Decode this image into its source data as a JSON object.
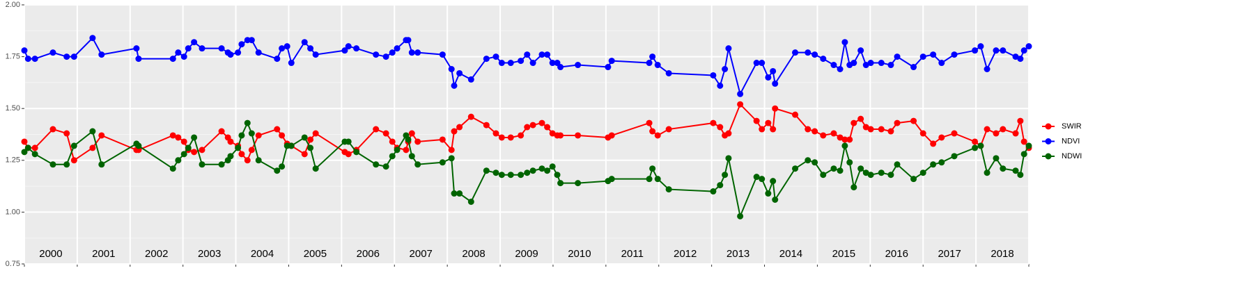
{
  "chart_data": {
    "type": "line",
    "x": [
      2000.0,
      2000.07,
      2000.2,
      2000.54,
      2000.8,
      2000.94,
      2001.29,
      2001.46,
      2002.12,
      2002.16,
      2002.81,
      2002.91,
      2003.02,
      2003.1,
      2003.21,
      2003.36,
      2003.73,
      2003.85,
      2003.9,
      2004.04,
      2004.11,
      2004.22,
      2004.3,
      2004.43,
      2004.78,
      2004.87,
      2004.97,
      2005.05,
      2005.3,
      2005.41,
      2005.51,
      2006.06,
      2006.13,
      2006.28,
      2006.65,
      2006.84,
      2006.96,
      2007.05,
      2007.22,
      2007.26,
      2007.33,
      2007.44,
      2007.91,
      2008.08,
      2008.13,
      2008.23,
      2008.45,
      2008.74,
      2008.92,
      2009.03,
      2009.2,
      2009.39,
      2009.51,
      2009.62,
      2009.79,
      2009.89,
      2009.99,
      2010.08,
      2010.14,
      2010.47,
      2011.04,
      2011.11,
      2011.82,
      2011.88,
      2011.98,
      2012.19,
      2013.03,
      2013.16,
      2013.25,
      2013.32,
      2013.54,
      2013.85,
      2013.95,
      2014.07,
      2014.16,
      2014.2,
      2014.58,
      2014.82,
      2014.95,
      2015.11,
      2015.31,
      2015.43,
      2015.52,
      2015.61,
      2015.69,
      2015.82,
      2015.92,
      2016.01,
      2016.21,
      2016.39,
      2016.51,
      2016.82,
      2017.0,
      2017.19,
      2017.35,
      2017.59,
      2017.98,
      2018.09,
      2018.21,
      2018.38,
      2018.51,
      2018.75,
      2018.84,
      2018.91,
      2019.0
    ],
    "series": [
      {
        "name": "SWIR",
        "color": "#ff0000",
        "values": [
          1.34,
          1.31,
          1.31,
          1.4,
          1.38,
          1.25,
          1.31,
          1.37,
          1.3,
          1.3,
          1.37,
          1.36,
          1.34,
          1.3,
          1.29,
          1.3,
          1.39,
          1.36,
          1.34,
          1.32,
          1.28,
          1.25,
          1.3,
          1.37,
          1.4,
          1.37,
          1.33,
          1.32,
          1.28,
          1.35,
          1.38,
          1.29,
          1.28,
          1.3,
          1.4,
          1.38,
          1.34,
          1.31,
          1.3,
          1.34,
          1.38,
          1.34,
          1.35,
          1.3,
          1.39,
          1.41,
          1.46,
          1.42,
          1.38,
          1.36,
          1.36,
          1.37,
          1.41,
          1.42,
          1.43,
          1.41,
          1.38,
          1.37,
          1.37,
          1.37,
          1.36,
          1.37,
          1.43,
          1.39,
          1.37,
          1.4,
          1.43,
          1.41,
          1.37,
          1.38,
          1.52,
          1.44,
          1.4,
          1.43,
          1.4,
          1.5,
          1.47,
          1.4,
          1.39,
          1.37,
          1.38,
          1.36,
          1.35,
          1.35,
          1.43,
          1.45,
          1.41,
          1.4,
          1.4,
          1.39,
          1.43,
          1.44,
          1.38,
          1.33,
          1.36,
          1.38,
          1.34,
          1.32,
          1.4,
          1.38,
          1.4,
          1.38,
          1.44,
          1.34,
          1.31
        ]
      },
      {
        "name": "NDVI",
        "color": "#0000ff",
        "values": [
          1.78,
          1.74,
          1.74,
          1.77,
          1.75,
          1.75,
          1.84,
          1.76,
          1.79,
          1.74,
          1.74,
          1.77,
          1.75,
          1.79,
          1.82,
          1.79,
          1.79,
          1.77,
          1.76,
          1.77,
          1.81,
          1.83,
          1.83,
          1.77,
          1.74,
          1.79,
          1.8,
          1.72,
          1.82,
          1.79,
          1.76,
          1.78,
          1.8,
          1.79,
          1.76,
          1.75,
          1.77,
          1.79,
          1.83,
          1.83,
          1.77,
          1.77,
          1.76,
          1.69,
          1.61,
          1.67,
          1.64,
          1.74,
          1.75,
          1.72,
          1.72,
          1.73,
          1.76,
          1.72,
          1.76,
          1.76,
          1.72,
          1.72,
          1.7,
          1.71,
          1.7,
          1.73,
          1.72,
          1.75,
          1.71,
          1.67,
          1.66,
          1.61,
          1.69,
          1.79,
          1.57,
          1.72,
          1.72,
          1.65,
          1.68,
          1.62,
          1.77,
          1.77,
          1.76,
          1.74,
          1.71,
          1.69,
          1.82,
          1.71,
          1.72,
          1.78,
          1.71,
          1.72,
          1.72,
          1.71,
          1.75,
          1.7,
          1.75,
          1.76,
          1.72,
          1.76,
          1.78,
          1.8,
          1.69,
          1.78,
          1.78,
          1.75,
          1.74,
          1.78,
          1.8
        ]
      },
      {
        "name": "NDWI",
        "color": "#006400",
        "values": [
          1.29,
          1.31,
          1.28,
          1.23,
          1.23,
          1.32,
          1.39,
          1.23,
          1.33,
          1.32,
          1.21,
          1.25,
          1.28,
          1.31,
          1.36,
          1.23,
          1.23,
          1.25,
          1.27,
          1.31,
          1.37,
          1.43,
          1.38,
          1.25,
          1.2,
          1.22,
          1.32,
          1.32,
          1.36,
          1.31,
          1.21,
          1.34,
          1.34,
          1.29,
          1.23,
          1.22,
          1.27,
          1.3,
          1.37,
          1.35,
          1.27,
          1.23,
          1.24,
          1.26,
          1.09,
          1.09,
          1.05,
          1.2,
          1.19,
          1.18,
          1.18,
          1.18,
          1.19,
          1.2,
          1.21,
          1.2,
          1.22,
          1.18,
          1.14,
          1.14,
          1.15,
          1.16,
          1.16,
          1.21,
          1.16,
          1.11,
          1.1,
          1.13,
          1.18,
          1.26,
          0.98,
          1.17,
          1.16,
          1.09,
          1.15,
          1.06,
          1.21,
          1.25,
          1.24,
          1.18,
          1.21,
          1.2,
          1.32,
          1.24,
          1.12,
          1.21,
          1.19,
          1.18,
          1.19,
          1.18,
          1.23,
          1.16,
          1.19,
          1.23,
          1.24,
          1.27,
          1.31,
          1.32,
          1.19,
          1.26,
          1.21,
          1.2,
          1.18,
          1.28,
          1.32
        ]
      }
    ],
    "xlim": [
      2000,
      2019
    ],
    "xticks": [
      {
        "value": 2000.5,
        "label": "2000"
      },
      {
        "value": 2001.5,
        "label": "2001"
      },
      {
        "value": 2002.5,
        "label": "2002"
      },
      {
        "value": 2003.5,
        "label": "2003"
      },
      {
        "value": 2004.5,
        "label": "2004"
      },
      {
        "value": 2005.5,
        "label": "2005"
      },
      {
        "value": 2006.5,
        "label": "2006"
      },
      {
        "value": 2007.5,
        "label": "2007"
      },
      {
        "value": 2008.5,
        "label": "2008"
      },
      {
        "value": 2009.5,
        "label": "2009"
      },
      {
        "value": 2010.5,
        "label": "2010"
      },
      {
        "value": 2011.5,
        "label": "2011"
      },
      {
        "value": 2012.5,
        "label": "2012"
      },
      {
        "value": 2013.5,
        "label": "2013"
      },
      {
        "value": 2014.5,
        "label": "2014"
      },
      {
        "value": 2015.5,
        "label": "2015"
      },
      {
        "value": 2016.5,
        "label": "2016"
      },
      {
        "value": 2017.5,
        "label": "2017"
      },
      {
        "value": 2018.5,
        "label": "2018"
      }
    ],
    "xgrid": [
      2000,
      2001,
      2002,
      2003,
      2004,
      2005,
      2006,
      2007,
      2008,
      2009,
      2010,
      2011,
      2012,
      2013,
      2014,
      2015,
      2016,
      2017,
      2018,
      2019
    ],
    "ylim": [
      0.75,
      2.0
    ],
    "yticks": [
      {
        "value": 0.75,
        "label": "0.75"
      },
      {
        "value": 1.0,
        "label": "1.00"
      },
      {
        "value": 1.25,
        "label": "1.25"
      },
      {
        "value": 1.5,
        "label": "1.50"
      },
      {
        "value": 1.75,
        "label": "1.75"
      },
      {
        "value": 2.0,
        "label": "2.00"
      }
    ],
    "yminor": [
      0.875,
      1.125,
      1.375,
      1.625,
      1.875
    ],
    "grid": true,
    "legend": "right"
  }
}
